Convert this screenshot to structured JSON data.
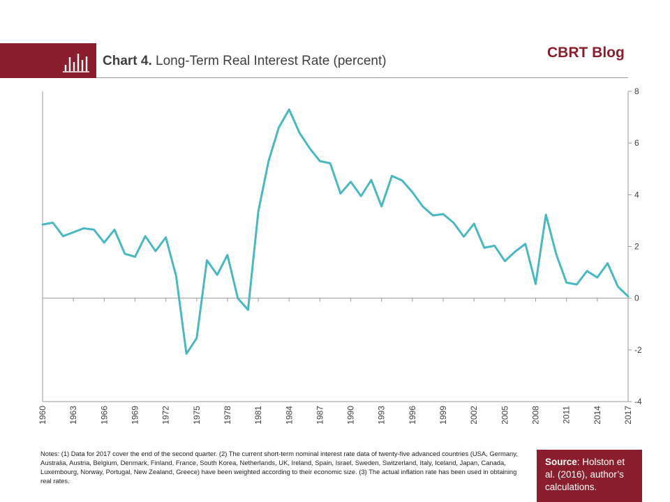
{
  "header": {
    "title_bold": "Chart 4.",
    "title_rest": "Long-Term Real Interest Rate (percent)",
    "brand": "CBRT Blog",
    "icon": "bar-chart-icon"
  },
  "colors": {
    "accent": "#8b1e2d",
    "line": "#4ab8c1",
    "axis": "#9a9a9a"
  },
  "chart_data": {
    "type": "line",
    "title": "Chart 4. Long-Term Real Interest Rate (percent)",
    "xlabel": "",
    "ylabel": "",
    "ylim": [
      -4,
      8
    ],
    "xlim": [
      1960,
      2017
    ],
    "y_axis_side": "right",
    "grid": false,
    "legend": "none",
    "x_ticks": [
      1960,
      1963,
      1966,
      1969,
      1972,
      1975,
      1978,
      1981,
      1984,
      1987,
      1990,
      1993,
      1996,
      1999,
      2002,
      2005,
      2008,
      2011,
      2014,
      2017
    ],
    "y_ticks": [
      -4,
      -2,
      0,
      2,
      4,
      6,
      8
    ],
    "series": [
      {
        "x": [
          1960,
          1961,
          1962,
          1963,
          1964,
          1965,
          1966,
          1967,
          1968,
          1969,
          1970,
          1971,
          1972,
          1973,
          1974,
          1975,
          1976,
          1977,
          1978,
          1979,
          1980,
          1981,
          1982,
          1983,
          1984,
          1985,
          1986,
          1987,
          1988,
          1989,
          1990,
          1991,
          1992,
          1993,
          1994,
          1995,
          1996,
          1997,
          1998,
          1999,
          2000,
          2001,
          2002,
          2003,
          2004,
          2005,
          2006,
          2007,
          2008,
          2009,
          2010,
          2011,
          2012,
          2013,
          2014,
          2015,
          2016,
          2017
        ],
        "values": [
          2.85,
          2.92,
          2.4,
          2.55,
          2.7,
          2.65,
          2.15,
          2.65,
          1.72,
          1.6,
          2.4,
          1.82,
          2.35,
          0.85,
          -2.15,
          -1.55,
          1.47,
          0.9,
          1.67,
          0.0,
          -0.45,
          3.35,
          5.3,
          6.6,
          7.3,
          6.4,
          5.8,
          5.3,
          5.22,
          4.05,
          4.5,
          3.95,
          4.57,
          3.55,
          4.73,
          4.55,
          4.1,
          3.55,
          3.2,
          3.25,
          2.92,
          2.38,
          2.88,
          1.95,
          2.03,
          1.43,
          1.8,
          2.1,
          0.55,
          3.23,
          1.7,
          0.6,
          0.53,
          1.05,
          0.8,
          1.35,
          0.45,
          0.07
        ]
      }
    ]
  },
  "notes": "Notes: (1) Data for 2017 cover the end of the second quarter. (2) The current short-term nominal interest rate data of twenty-five advanced countries (USA, Germany, Australia, Austria, Belgium, Denmark, Finland, France, South Korea, Netherlands, UK, Ireland, Spain, Israel, Sweden, Switzerland, Italy, Iceland, Japan, Canada, Luxembourg, Norway, Portugal, New Zealand, Greece) have been weighted according to their economic size. (3) The actual inflation rate has been used in obtaining real rates.",
  "source": {
    "label": "Source",
    "text": ": Holston et al. (2016), author’s calculations."
  }
}
